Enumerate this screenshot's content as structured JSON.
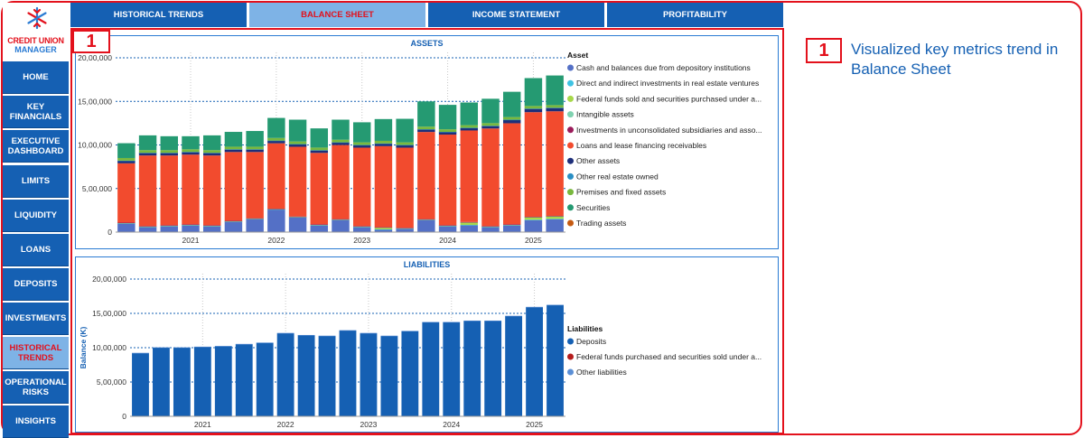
{
  "logo": {
    "line1": "CREDIT UNION",
    "line2": "MANAGER"
  },
  "sidebar": {
    "items": [
      {
        "label": "HOME",
        "active": false
      },
      {
        "label": "KEY FINANCIALS",
        "active": false
      },
      {
        "label": "EXECUTIVE DASHBOARD",
        "active": false
      },
      {
        "label": "LIMITS",
        "active": false
      },
      {
        "label": "LIQUIDITY",
        "active": false
      },
      {
        "label": "LOANS",
        "active": false
      },
      {
        "label": "DEPOSITS",
        "active": false
      },
      {
        "label": "INVESTMENTS",
        "active": false
      },
      {
        "label": "HISTORICAL TRENDS",
        "active": true
      },
      {
        "label": "OPERATIONAL RISKS",
        "active": false
      },
      {
        "label": "INSIGHTS",
        "active": false
      }
    ]
  },
  "tabs": [
    {
      "label": "HISTORICAL TRENDS",
      "active": false
    },
    {
      "label": "BALANCE SHEET",
      "active": true
    },
    {
      "label": "INCOME STATEMENT",
      "active": false
    },
    {
      "label": "PROFITABILITY",
      "active": false
    }
  ],
  "annotation": {
    "badge": "1",
    "note": "Visualized key metrics trend in Balance Sheet"
  },
  "colors": {
    "accent_red": "#e3111c",
    "nav_blue": "#1560b3",
    "nav_active": "#7eb3e6"
  },
  "chart_data": [
    {
      "type": "bar",
      "stacked": true,
      "title": "ASSETS",
      "legend_title": "Asset",
      "legend_position": "right",
      "ylim": [
        0,
        2000000
      ],
      "yticks": [
        0,
        500000,
        1000000,
        1500000,
        2000000
      ],
      "ytick_labels": [
        "0",
        "5,00,000",
        "10,00,000",
        "15,00,000",
        "20,00,000"
      ],
      "x_year_labels": [
        {
          "label": "2021",
          "index": 3
        },
        {
          "label": "2022",
          "index": 7
        },
        {
          "label": "2023",
          "index": 11
        },
        {
          "label": "2024",
          "index": 15
        },
        {
          "label": "2025",
          "index": 19
        }
      ],
      "series": [
        {
          "name": "Cash and balances due from depository institutions",
          "color": "#5470c6",
          "values": [
            100000,
            60000,
            70000,
            80000,
            70000,
            120000,
            150000,
            260000,
            170000,
            80000,
            140000,
            60000,
            30000,
            40000,
            140000,
            70000,
            80000,
            60000,
            80000,
            140000,
            150000
          ]
        },
        {
          "name": "Direct and indirect investments in real estate ventures",
          "color": "#3fc3e3",
          "values": [
            2000,
            2000,
            2000,
            2000,
            2000,
            2000,
            2000,
            2000,
            2000,
            2000,
            2000,
            2000,
            2000,
            2000,
            2000,
            2000,
            2000,
            2000,
            2000,
            2000,
            2000
          ]
        },
        {
          "name": "Federal funds sold and securities purchased under a...",
          "color": "#a7d84b",
          "values": [
            3000,
            3000,
            3000,
            3000,
            3000,
            3000,
            3000,
            3000,
            3000,
            3000,
            3000,
            3000,
            20000,
            3000,
            3000,
            3000,
            30000,
            3000,
            3000,
            30000,
            30000
          ]
        },
        {
          "name": "Intangible assets",
          "color": "#7fd2b0",
          "values": [
            2000,
            2000,
            2000,
            2000,
            2000,
            2000,
            2000,
            2000,
            2000,
            2000,
            2000,
            2000,
            2000,
            2000,
            2000,
            2000,
            2000,
            2000,
            2000,
            2000,
            2000
          ]
        },
        {
          "name": "Investments in unconsolidated subsidiaries and asso...",
          "color": "#9b1b5a",
          "values": [
            2000,
            2000,
            2000,
            2000,
            2000,
            2000,
            2000,
            2000,
            2000,
            2000,
            2000,
            2000,
            2000,
            2000,
            2000,
            2000,
            2000,
            2000,
            2000,
            2000,
            2000
          ]
        },
        {
          "name": "Loans and lease financing receivables",
          "color": "#f24b2e",
          "values": [
            680000,
            810000,
            800000,
            800000,
            800000,
            790000,
            760000,
            750000,
            800000,
            820000,
            850000,
            900000,
            930000,
            920000,
            1000000,
            1040000,
            1050000,
            1120000,
            1160000,
            1200000,
            1200000
          ]
        },
        {
          "name": "Other assets",
          "color": "#1e2f7a",
          "values": [
            30000,
            30000,
            30000,
            30000,
            30000,
            30000,
            30000,
            30000,
            30000,
            30000,
            30000,
            30000,
            30000,
            30000,
            30000,
            30000,
            30000,
            30000,
            40000,
            40000,
            40000
          ]
        },
        {
          "name": "Other real estate owned",
          "color": "#2a8fc4",
          "values": [
            1000,
            1000,
            1000,
            1000,
            1000,
            1000,
            1000,
            1000,
            1000,
            1000,
            1000,
            1000,
            1000,
            1000,
            1000,
            1000,
            1000,
            1000,
            1000,
            1000,
            1000
          ]
        },
        {
          "name": "Premises and fixed assets",
          "color": "#79b83e",
          "values": [
            30000,
            30000,
            30000,
            30000,
            30000,
            30000,
            30000,
            30000,
            30000,
            30000,
            30000,
            30000,
            30000,
            30000,
            30000,
            30000,
            30000,
            30000,
            30000,
            30000,
            30000
          ]
        },
        {
          "name": "Securities",
          "color": "#259a72",
          "values": [
            170000,
            170000,
            160000,
            150000,
            170000,
            170000,
            180000,
            230000,
            250000,
            220000,
            230000,
            230000,
            250000,
            270000,
            290000,
            280000,
            260000,
            280000,
            290000,
            320000,
            340000
          ]
        },
        {
          "name": "Trading assets",
          "color": "#c55a11",
          "values": [
            0,
            0,
            0,
            0,
            0,
            0,
            0,
            0,
            0,
            0,
            0,
            0,
            0,
            0,
            0,
            0,
            0,
            0,
            0,
            0,
            0
          ]
        }
      ]
    },
    {
      "type": "bar",
      "title": "LIABILITIES",
      "ylabel": "Balance (K)",
      "legend_title": "Liabilities",
      "legend_position": "right",
      "ylim": [
        0,
        2000000
      ],
      "yticks": [
        0,
        500000,
        1000000,
        1500000,
        2000000
      ],
      "ytick_labels": [
        "0",
        "5,00,000",
        "10,00,000",
        "15,00,000",
        "20,00,000"
      ],
      "x_year_labels": [
        {
          "label": "2021",
          "index": 3
        },
        {
          "label": "2022",
          "index": 7
        },
        {
          "label": "2023",
          "index": 11
        },
        {
          "label": "2024",
          "index": 15
        },
        {
          "label": "2025",
          "index": 19
        }
      ],
      "series": [
        {
          "name": "Deposits",
          "color": "#1560b3",
          "values": [
            920000,
            1000000,
            1000000,
            1010000,
            1020000,
            1050000,
            1070000,
            1210000,
            1180000,
            1170000,
            1250000,
            1210000,
            1170000,
            1240000,
            1370000,
            1370000,
            1390000,
            1390000,
            1460000,
            1590000,
            1620000
          ]
        },
        {
          "name": "Federal funds purchased and securities sold under a...",
          "color": "#b51d1d",
          "values": [
            0,
            0,
            0,
            0,
            0,
            0,
            0,
            0,
            0,
            0,
            0,
            0,
            0,
            0,
            0,
            0,
            0,
            0,
            0,
            0,
            0
          ]
        },
        {
          "name": "Other liabilities",
          "color": "#5b8fd6",
          "values": [
            5000,
            5000,
            5000,
            5000,
            5000,
            5000,
            5000,
            5000,
            5000,
            5000,
            5000,
            5000,
            5000,
            5000,
            5000,
            5000,
            5000,
            5000,
            5000,
            5000,
            5000
          ]
        }
      ]
    }
  ]
}
